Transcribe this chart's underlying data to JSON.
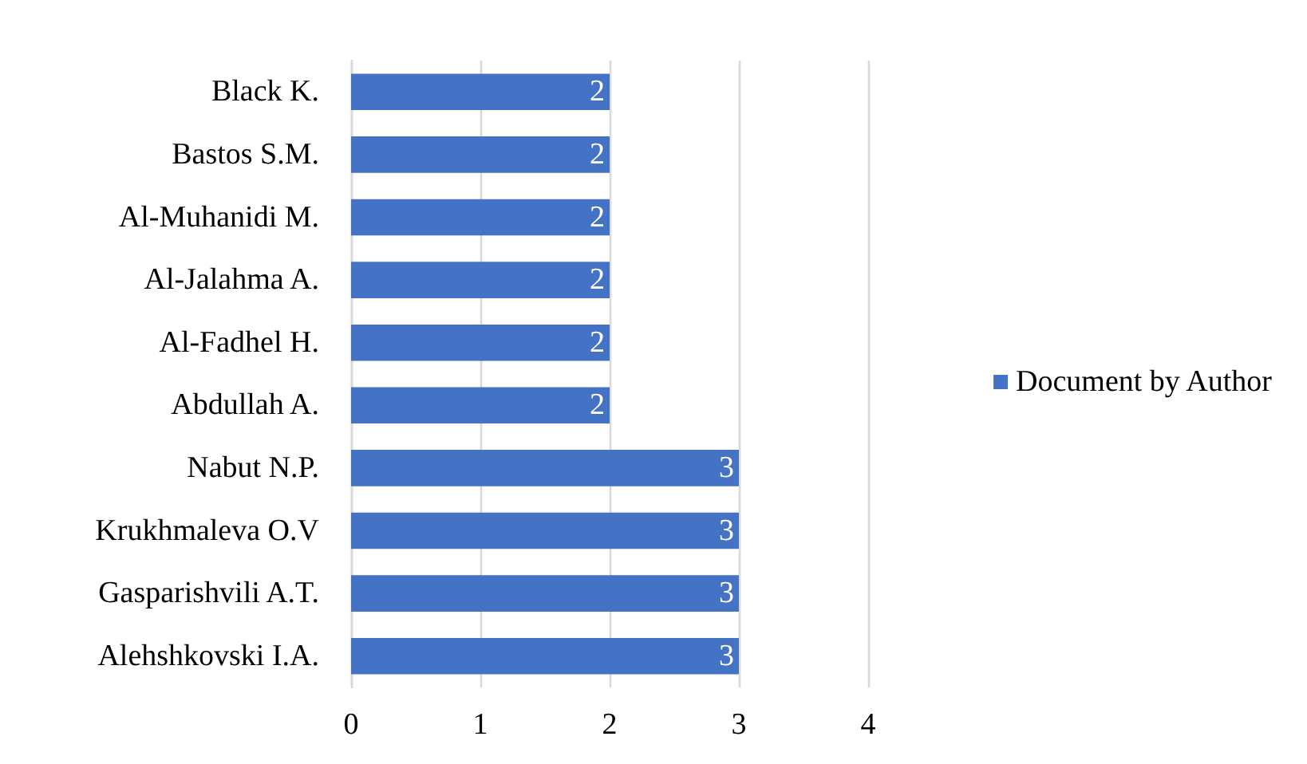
{
  "chart_data": {
    "type": "bar",
    "orientation": "horizontal",
    "categories": [
      "Black K.",
      "Bastos S.M.",
      "Al-Muhanidi M.",
      "Al-Jalahma A.",
      "Al-Fadhel H.",
      "Abdullah A.",
      "Nabut N.P.",
      "Krukhmaleva O.V",
      "Gasparishvili A.T.",
      "Alehshkovski I.A."
    ],
    "series": [
      {
        "name": "Document by Author",
        "color": "#4472c4",
        "values": [
          2,
          2,
          2,
          2,
          2,
          2,
          3,
          3,
          3,
          3
        ]
      }
    ],
    "xlim": [
      0,
      4
    ],
    "xticks": [
      0,
      1,
      2,
      3,
      4
    ],
    "grid": "x",
    "legend": "right",
    "data_labels": true
  }
}
